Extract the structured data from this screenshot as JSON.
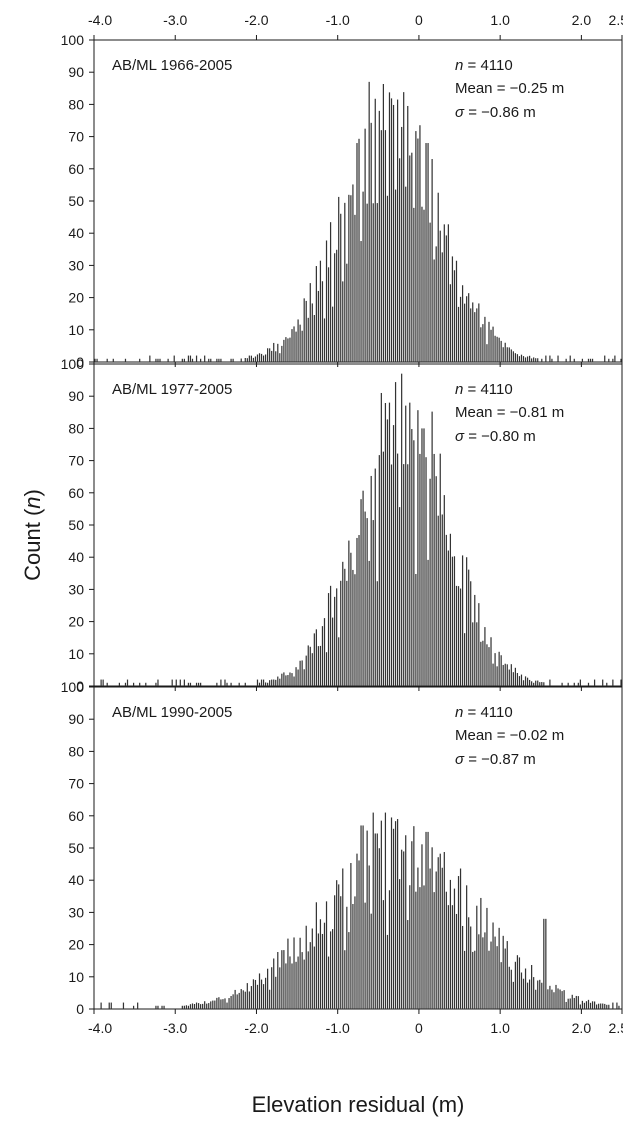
{
  "chart_data": {
    "type": "bar",
    "xlabel": "Elevation residual (m)",
    "ylabel": "Count (",
    "ylabel_italic": "n",
    "ylabel_close": ")",
    "xlim": [
      -4.0,
      2.5
    ],
    "ylim": [
      0,
      100
    ],
    "x_ticks": [
      "-4.0",
      "-3.0",
      "-2.0",
      "-1.0",
      "0",
      "1.0",
      "2.0",
      "2.5"
    ],
    "x_tick_values": [
      -4.0,
      -3.0,
      -2.0,
      -1.0,
      0,
      1.0,
      2.0,
      2.5
    ],
    "y_ticks": [
      "0",
      "10",
      "20",
      "30",
      "40",
      "50",
      "60",
      "70",
      "80",
      "90",
      "100"
    ],
    "y_tick_values": [
      0,
      10,
      20,
      30,
      40,
      50,
      60,
      70,
      80,
      90,
      100
    ],
    "bin_width": 0.025,
    "bar_color": "#333333",
    "panels": [
      {
        "label": "AB/ML 1966-2005",
        "stat_n_sym": "n",
        "stat_n_text": " = 4110",
        "stat_mean": "Mean = −0.25 m",
        "stat_sigma_sym": "σ",
        "stat_sigma_text": " = −0.86 m",
        "peak_x": -0.35,
        "peak_count": 70,
        "spread": 0.62,
        "tall_bars": [
          [
            -0.6,
            87
          ],
          [
            -0.75,
            68
          ],
          [
            -0.45,
            72
          ],
          [
            -0.3,
            75
          ],
          [
            -0.2,
            73
          ],
          [
            0.1,
            68
          ],
          [
            0.5,
            63
          ]
        ],
        "seed": 11
      },
      {
        "label": "AB/ML 1977-2005",
        "stat_n_sym": "n",
        "stat_n_text": " = 4110",
        "stat_mean": "Mean = −0.81 m",
        "stat_sigma_sym": "σ",
        "stat_sigma_text": " = −0.80 m",
        "peak_x": -0.2,
        "peak_count": 82,
        "spread": 0.58,
        "tall_bars": [
          [
            -0.45,
            91
          ],
          [
            -0.35,
            88
          ],
          [
            -0.2,
            97
          ],
          [
            -0.3,
            93
          ],
          [
            -0.1,
            88
          ],
          [
            0.05,
            80
          ]
        ],
        "seed": 23
      },
      {
        "label": "AB/ML 1990-2005",
        "stat_n_sym": "n",
        "stat_n_text": " = 4110",
        "stat_mean": "Mean = −0.02 m",
        "stat_sigma_sym": "σ",
        "stat_sigma_text": " = −0.87 m",
        "peak_x": -0.25,
        "peak_count": 48,
        "spread": 0.95,
        "tall_bars": [
          [
            -0.55,
            61
          ],
          [
            -0.4,
            61
          ],
          [
            -0.7,
            57
          ],
          [
            0.1,
            55
          ],
          [
            0.2,
            53
          ],
          [
            1.55,
            28
          ]
        ],
        "seed": 37
      }
    ]
  }
}
